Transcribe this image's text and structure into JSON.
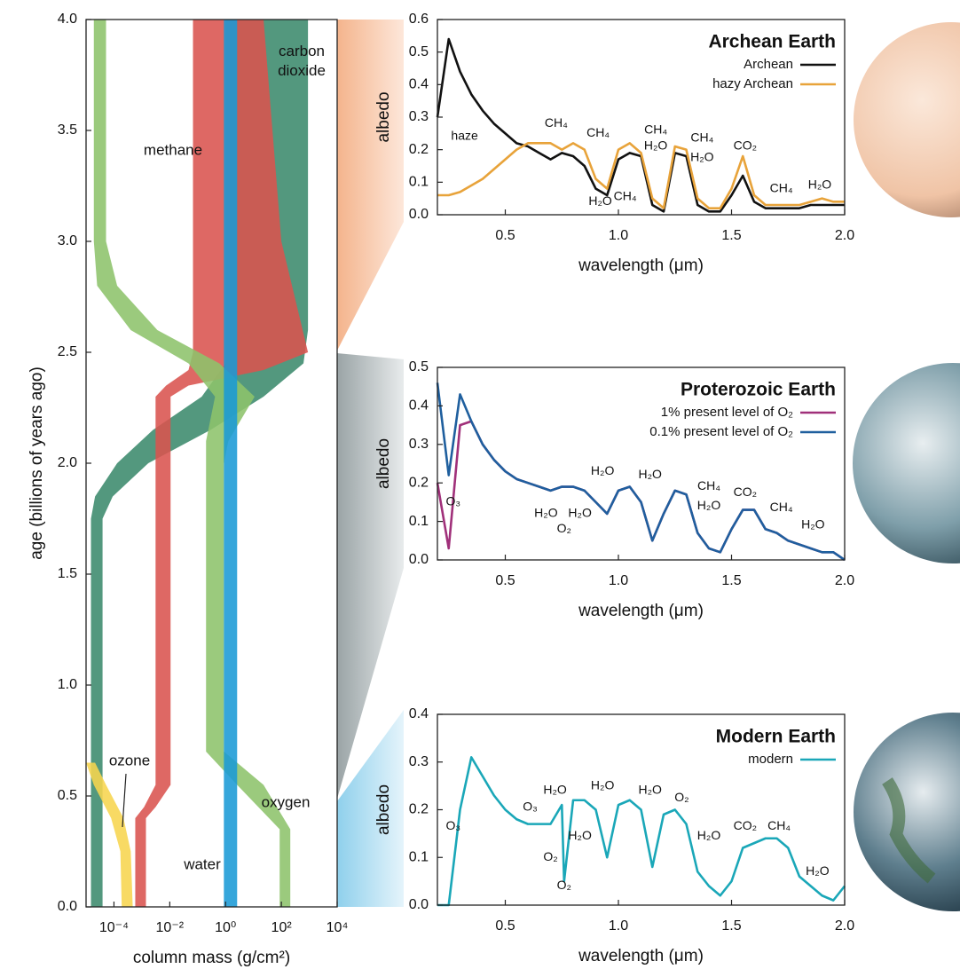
{
  "chart_data": [
    {
      "type": "band",
      "xlabel": "column mass (g/cm²)",
      "ylabel": "age (billions of years ago)",
      "xscale": "log",
      "xlim": [
        1e-05,
        10000
      ],
      "ylim": [
        0,
        4
      ],
      "xticks": [
        {
          "value": 0.0001,
          "label": "10⁻⁴"
        },
        {
          "value": 0.01,
          "label": "10⁻²"
        },
        {
          "value": 1,
          "label": "10⁰"
        },
        {
          "value": 100,
          "label": "10²"
        },
        {
          "value": 10000,
          "label": "10⁴"
        }
      ],
      "yticks": [
        {
          "value": 0,
          "label": "0.0"
        },
        0.5,
        {
          "value": 1,
          "label": "1.0"
        },
        1.5,
        {
          "value": 2,
          "label": "2.0"
        },
        2.5,
        {
          "value": 3,
          "label": "3.0"
        },
        3.5,
        {
          "value": 4,
          "label": "4.0"
        }
      ],
      "series": [
        {
          "name": "carbon dioxide",
          "color": "#3b8a6c",
          "age": [
            4.0,
            2.6,
            2.45,
            2.3,
            2.15,
            2.0,
            1.85,
            1.75,
            0.0
          ],
          "low": [
            1,
            1,
            1,
            0.14,
            0.0025,
            0.00013,
            2.1e-05,
            1.5e-05,
            1.5e-05
          ],
          "high": [
            900,
            900,
            620,
            23,
            0.29,
            0.0017,
            9e-05,
            3.9e-05,
            3.9e-05
          ]
        },
        {
          "name": "methane",
          "color": "#d9534f",
          "age": [
            4.0,
            3.0,
            2.5,
            2.42,
            2.35,
            2.3,
            0.55,
            0.45,
            0.4,
            0.0
          ],
          "low": [
            0.068,
            0.068,
            0.068,
            0.047,
            0.0074,
            0.0031,
            0.0031,
            0.0012,
            0.00058,
            0.00058
          ],
          "high": [
            23,
            100,
            900,
            23,
            0.047,
            0.0107,
            0.0107,
            0.0031,
            0.0014,
            0.0014
          ]
        },
        {
          "name": "oxygen",
          "color": "#8dc36b",
          "age": [
            4.0,
            3.0,
            2.8,
            2.6,
            2.45,
            2.3,
            2.1,
            2.0,
            0.7,
            0.55,
            0.35,
            0.0
          ],
          "low": [
            1.9e-05,
            1.9e-05,
            2.5e-05,
            0.0004,
            0.047,
            0.42,
            0.2,
            0.2,
            0.2,
            2.6,
            87,
            87
          ],
          "high": [
            5.2e-05,
            5.2e-05,
            0.00013,
            0.0036,
            0.6,
            11,
            1.26,
            0.87,
            0.87,
            23,
            209,
            209
          ]
        },
        {
          "name": "water",
          "color": "#1a9ad6",
          "age": [
            4.0,
            0.0
          ],
          "low": [
            0.87,
            0.87
          ],
          "high": [
            2.6,
            2.6
          ]
        },
        {
          "name": "ozone",
          "color": "#f7d54e",
          "age": [
            0.65,
            0.55,
            0.4,
            0.25,
            0.0
          ],
          "low": [
            1e-05,
            1.9e-05,
            7.9e-05,
            0.00017,
            0.00019
          ],
          "high": [
            2.1e-05,
            5.2e-05,
            0.00022,
            0.0004,
            0.00047
          ]
        }
      ]
    },
    {
      "type": "line",
      "title": "Archean Earth",
      "xlabel": "wavelength (μm)",
      "ylabel": "albedo",
      "legend": "upper right",
      "xlim": [
        0.2,
        2.0
      ],
      "ylim": [
        0,
        0.6
      ],
      "xticks": [
        0.5,
        {
          "value": 1,
          "label": "1.0"
        },
        1.5,
        {
          "value": 2,
          "label": "2.0"
        }
      ],
      "yticks": [
        {
          "value": 0,
          "label": "0.0"
        },
        0.1,
        0.2,
        0.3,
        0.4,
        0.5,
        0.6
      ],
      "x": [
        0.2,
        0.25,
        0.3,
        0.35,
        0.4,
        0.45,
        0.5,
        0.55,
        0.6,
        0.65,
        0.7,
        0.75,
        0.8,
        0.85,
        0.9,
        0.95,
        1.0,
        1.05,
        1.1,
        1.15,
        1.2,
        1.25,
        1.3,
        1.35,
        1.4,
        1.45,
        1.5,
        1.55,
        1.6,
        1.65,
        1.7,
        1.75,
        1.8,
        1.85,
        1.9,
        1.95,
        2.0
      ],
      "series": [
        {
          "name": "Archean",
          "color": "#111111",
          "values": [
            0.3,
            0.54,
            0.44,
            0.37,
            0.32,
            0.28,
            0.25,
            0.22,
            0.21,
            0.19,
            0.17,
            0.19,
            0.18,
            0.15,
            0.08,
            0.06,
            0.17,
            0.19,
            0.18,
            0.03,
            0.01,
            0.19,
            0.18,
            0.03,
            0.01,
            0.01,
            0.06,
            0.12,
            0.04,
            0.02,
            0.02,
            0.02,
            0.02,
            0.03,
            0.03,
            0.03,
            0.03
          ]
        },
        {
          "name": "hazy Archean",
          "color": "#e8a33a",
          "values": [
            0.06,
            0.06,
            0.07,
            0.09,
            0.11,
            0.14,
            0.17,
            0.2,
            0.22,
            0.22,
            0.22,
            0.2,
            0.22,
            0.2,
            0.11,
            0.08,
            0.2,
            0.22,
            0.19,
            0.05,
            0.02,
            0.21,
            0.2,
            0.05,
            0.02,
            0.02,
            0.08,
            0.18,
            0.06,
            0.03,
            0.03,
            0.03,
            0.03,
            0.04,
            0.05,
            0.04,
            0.04
          ]
        }
      ],
      "annotations": [
        {
          "text": "haze",
          "x": 0.32,
          "y": 0.24
        },
        {
          "text": "CH₄",
          "x": 0.725,
          "y": 0.28
        },
        {
          "text": "CH₄",
          "x": 0.91,
          "y": 0.25
        },
        {
          "text": "CH₄",
          "x": 1.165,
          "y": 0.26
        },
        {
          "text": "H₂O",
          "x": 1.165,
          "y": 0.21
        },
        {
          "text": "CH₄",
          "x": 1.37,
          "y": 0.235
        },
        {
          "text": "H₂O",
          "x": 1.37,
          "y": 0.175
        },
        {
          "text": "CO₂",
          "x": 1.56,
          "y": 0.21
        },
        {
          "text": "H₂O",
          "x": 0.92,
          "y": 0.04
        },
        {
          "text": "CH₄",
          "x": 1.03,
          "y": 0.055
        },
        {
          "text": "CH₄",
          "x": 1.72,
          "y": 0.08
        },
        {
          "text": "H₂O",
          "x": 1.89,
          "y": 0.09
        }
      ]
    },
    {
      "type": "line",
      "title": "Proterozoic Earth",
      "xlabel": "wavelength (μm)",
      "ylabel": "albedo",
      "legend": "upper right",
      "xlim": [
        0.2,
        2.0
      ],
      "ylim": [
        0,
        0.5
      ],
      "xticks": [
        0.5,
        {
          "value": 1,
          "label": "1.0"
        },
        1.5,
        {
          "value": 2,
          "label": "2.0"
        }
      ],
      "yticks": [
        {
          "value": 0,
          "label": "0.0"
        },
        0.1,
        0.2,
        0.3,
        0.4,
        0.5
      ],
      "x": [
        0.2,
        0.25,
        0.3,
        0.35,
        0.4,
        0.45,
        0.5,
        0.55,
        0.6,
        0.65,
        0.7,
        0.75,
        0.8,
        0.85,
        0.9,
        0.95,
        1.0,
        1.05,
        1.1,
        1.15,
        1.2,
        1.25,
        1.3,
        1.35,
        1.4,
        1.45,
        1.5,
        1.55,
        1.6,
        1.65,
        1.7,
        1.75,
        1.8,
        1.85,
        1.9,
        1.95,
        2.0
      ],
      "series": [
        {
          "name": "1% present level of O₂",
          "color": "#a0307a",
          "values": [
            0.2,
            0.03,
            0.35,
            0.36,
            0.3,
            0.26,
            0.23,
            0.21,
            0.2,
            0.19,
            0.18,
            0.19,
            0.19,
            0.18,
            0.15,
            0.12,
            0.18,
            0.19,
            0.15,
            0.05,
            0.12,
            0.18,
            0.17,
            0.07,
            0.03,
            0.02,
            0.08,
            0.13,
            0.13,
            0.08,
            0.07,
            0.05,
            0.04,
            0.03,
            0.02,
            0.02,
            0.0
          ]
        },
        {
          "name": "0.1% present level of O₂",
          "color": "#1f5f9e",
          "values": [
            0.46,
            0.22,
            0.43,
            0.36,
            0.3,
            0.26,
            0.23,
            0.21,
            0.2,
            0.19,
            0.18,
            0.19,
            0.19,
            0.18,
            0.15,
            0.12,
            0.18,
            0.19,
            0.15,
            0.05,
            0.12,
            0.18,
            0.17,
            0.07,
            0.03,
            0.02,
            0.08,
            0.13,
            0.13,
            0.08,
            0.07,
            0.05,
            0.04,
            0.03,
            0.02,
            0.02,
            0.0
          ]
        }
      ],
      "annotations": [
        {
          "text": "O₃",
          "x": 0.27,
          "y": 0.15
        },
        {
          "text": "H₂O",
          "x": 0.93,
          "y": 0.23
        },
        {
          "text": "H₂O",
          "x": 1.14,
          "y": 0.22
        },
        {
          "text": "H₂O",
          "x": 0.68,
          "y": 0.12
        },
        {
          "text": "H₂O",
          "x": 0.83,
          "y": 0.12
        },
        {
          "text": "O₂",
          "x": 0.76,
          "y": 0.08
        },
        {
          "text": "CH₄",
          "x": 1.4,
          "y": 0.19
        },
        {
          "text": "H₂O",
          "x": 1.4,
          "y": 0.14
        },
        {
          "text": "CO₂",
          "x": 1.56,
          "y": 0.175
        },
        {
          "text": "CH₄",
          "x": 1.72,
          "y": 0.135
        },
        {
          "text": "H₂O",
          "x": 1.86,
          "y": 0.09
        }
      ]
    },
    {
      "type": "line",
      "title": "Modern Earth",
      "xlabel": "wavelength (μm)",
      "ylabel": "albedo",
      "legend": "upper right",
      "xlim": [
        0.2,
        2.0
      ],
      "ylim": [
        0,
        0.4
      ],
      "xticks": [
        0.5,
        {
          "value": 1,
          "label": "1.0"
        },
        1.5,
        {
          "value": 2,
          "label": "2.0"
        }
      ],
      "yticks": [
        {
          "value": 0,
          "label": "0.0"
        },
        0.1,
        0.2,
        0.3,
        0.4
      ],
      "x": [
        0.2,
        0.25,
        0.3,
        0.35,
        0.4,
        0.45,
        0.5,
        0.55,
        0.6,
        0.65,
        0.7,
        0.75,
        0.76,
        0.8,
        0.85,
        0.9,
        0.95,
        1.0,
        1.05,
        1.1,
        1.15,
        1.2,
        1.25,
        1.3,
        1.35,
        1.4,
        1.45,
        1.5,
        1.55,
        1.6,
        1.65,
        1.7,
        1.75,
        1.8,
        1.85,
        1.9,
        1.95,
        2.0
      ],
      "series": [
        {
          "name": "modern",
          "color": "#1aa7b8",
          "values": [
            0.0,
            0.0,
            0.2,
            0.31,
            0.27,
            0.23,
            0.2,
            0.18,
            0.17,
            0.17,
            0.17,
            0.21,
            0.05,
            0.22,
            0.22,
            0.2,
            0.1,
            0.21,
            0.22,
            0.2,
            0.08,
            0.19,
            0.2,
            0.17,
            0.07,
            0.04,
            0.02,
            0.05,
            0.12,
            0.13,
            0.14,
            0.14,
            0.12,
            0.06,
            0.04,
            0.02,
            0.01,
            0.04
          ]
        }
      ],
      "annotations": [
        {
          "text": "O₃",
          "x": 0.27,
          "y": 0.165
        },
        {
          "text": "O₃",
          "x": 0.61,
          "y": 0.205
        },
        {
          "text": "H₂O",
          "x": 0.72,
          "y": 0.24
        },
        {
          "text": "H₂O",
          "x": 0.93,
          "y": 0.25
        },
        {
          "text": "H₂O",
          "x": 0.83,
          "y": 0.145
        },
        {
          "text": "H₂O",
          "x": 1.14,
          "y": 0.24
        },
        {
          "text": "O₂",
          "x": 1.28,
          "y": 0.225
        },
        {
          "text": "H₂O",
          "x": 1.4,
          "y": 0.145
        },
        {
          "text": "CO₂",
          "x": 1.56,
          "y": 0.165
        },
        {
          "text": "CH₄",
          "x": 1.71,
          "y": 0.165
        },
        {
          "text": "H₂O",
          "x": 1.88,
          "y": 0.07
        },
        {
          "text": "O₂",
          "x": 0.7,
          "y": 0.1
        },
        {
          "text": "O₂",
          "x": 0.76,
          "y": 0.04
        }
      ]
    }
  ]
}
